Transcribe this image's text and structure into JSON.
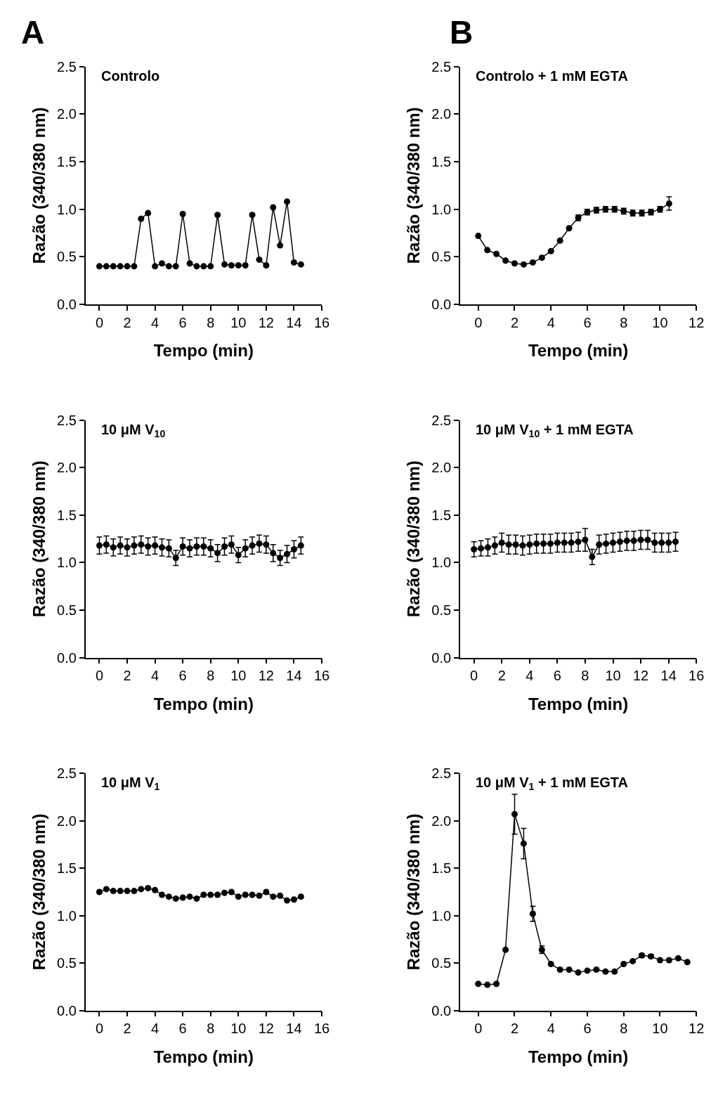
{
  "chart_data": [
    {
      "type": "line",
      "title": "Controlo",
      "xlabel": "Tempo (min)",
      "ylabel": "Razão (340/380 nm)",
      "annotations": [
        "A"
      ],
      "marker": "circle",
      "color": "#000000",
      "x": [
        0,
        0.5,
        1,
        1.5,
        2,
        2.5,
        3,
        3.5,
        4,
        4.5,
        5,
        5.5,
        6,
        6.5,
        7,
        7.5,
        8,
        8.5,
        9,
        9.5,
        10,
        10.5,
        11,
        11.5,
        12,
        12.5,
        13,
        13.5,
        14,
        14.5
      ],
      "values": [
        0.4,
        0.4,
        0.4,
        0.4,
        0.4,
        0.4,
        0.9,
        0.96,
        0.4,
        0.43,
        0.4,
        0.4,
        0.95,
        0.43,
        0.4,
        0.4,
        0.4,
        0.94,
        0.42,
        0.41,
        0.41,
        0.41,
        0.94,
        0.47,
        0.41,
        1.02,
        0.62,
        1.08,
        0.44,
        0.42
      ],
      "xlim": [
        -1,
        16
      ],
      "xticks": [
        0,
        2,
        4,
        6,
        8,
        10,
        12,
        14,
        16
      ],
      "ylim": [
        0,
        2.5
      ],
      "yticks": [
        {
          "value": 0,
          "label": "0.0"
        },
        {
          "value": 0.5,
          "label": "0.5"
        },
        {
          "value": 1,
          "label": "1.0"
        },
        {
          "value": 1.5,
          "label": "1.5"
        },
        {
          "value": 2,
          "label": "2.0"
        },
        {
          "value": 2.5,
          "label": "2.5"
        }
      ]
    },
    {
      "type": "line",
      "title": "Controlo + 1 mM EGTA",
      "xlabel": "Tempo (min)",
      "ylabel": "Razão (340/380 nm)",
      "annotations": [
        "B"
      ],
      "marker": "circle",
      "color": "#000000",
      "x": [
        0,
        0.5,
        1,
        1.5,
        2,
        2.5,
        3,
        3.5,
        4,
        4.5,
        5,
        5.5,
        6,
        6.5,
        7,
        7.5,
        8,
        8.5,
        9,
        9.5,
        10,
        10.5
      ],
      "values": [
        0.72,
        0.57,
        0.53,
        0.46,
        0.43,
        0.42,
        0.44,
        0.49,
        0.56,
        0.67,
        0.8,
        0.91,
        0.97,
        0.99,
        1.0,
        1.0,
        0.98,
        0.96,
        0.96,
        0.97,
        1.0,
        1.06
      ],
      "errors": [
        null,
        null,
        null,
        null,
        null,
        null,
        null,
        null,
        null,
        null,
        null,
        0.03,
        0.03,
        0.03,
        0.03,
        0.03,
        0.03,
        0.03,
        0.03,
        0.03,
        0.03,
        0.07
      ],
      "xlim": [
        -1,
        12
      ],
      "xticks": [
        0,
        2,
        4,
        6,
        8,
        10,
        12
      ],
      "ylim": [
        0,
        2.5
      ],
      "yticks": [
        {
          "value": 0,
          "label": "0.0"
        },
        {
          "value": 0.5,
          "label": "0.5"
        },
        {
          "value": 1,
          "label": "1.0"
        },
        {
          "value": 1.5,
          "label": "1.5"
        },
        {
          "value": 2,
          "label": "2.0"
        },
        {
          "value": 2.5,
          "label": "2.5"
        }
      ]
    },
    {
      "type": "line",
      "title": "10 μM V$_{10}$",
      "xlabel": "Tempo (min)",
      "ylabel": "Razão (340/380 nm)",
      "marker": "circle",
      "color": "#000000",
      "x": [
        0,
        0.5,
        1,
        1.5,
        2,
        2.5,
        3,
        3.5,
        4,
        4.5,
        5,
        5.5,
        6,
        6.5,
        7,
        7.5,
        8,
        8.5,
        9,
        9.5,
        10,
        10.5,
        11,
        11.5,
        12,
        12.5,
        13,
        13.5,
        14,
        14.5
      ],
      "values": [
        1.18,
        1.19,
        1.16,
        1.18,
        1.16,
        1.18,
        1.19,
        1.17,
        1.18,
        1.16,
        1.15,
        1.05,
        1.17,
        1.15,
        1.17,
        1.17,
        1.15,
        1.1,
        1.17,
        1.19,
        1.08,
        1.15,
        1.18,
        1.2,
        1.19,
        1.1,
        1.05,
        1.09,
        1.14,
        1.18
      ],
      "errors": [
        0.09,
        0.09,
        0.09,
        0.09,
        0.09,
        0.09,
        0.09,
        0.09,
        0.09,
        0.09,
        0.09,
        0.08,
        0.09,
        0.09,
        0.09,
        0.09,
        0.09,
        0.09,
        0.09,
        0.09,
        0.08,
        0.09,
        0.09,
        0.09,
        0.09,
        0.09,
        0.08,
        0.09,
        0.09,
        0.09
      ],
      "xlim": [
        -1,
        16
      ],
      "xticks": [
        0,
        2,
        4,
        6,
        8,
        10,
        12,
        14,
        16
      ],
      "ylim": [
        0,
        2.5
      ],
      "yticks": [
        {
          "value": 0,
          "label": "0.0"
        },
        {
          "value": 0.5,
          "label": "0.5"
        },
        {
          "value": 1,
          "label": "1.0"
        },
        {
          "value": 1.5,
          "label": "1.5"
        },
        {
          "value": 2,
          "label": "2.0"
        },
        {
          "value": 2.5,
          "label": "2.5"
        }
      ]
    },
    {
      "type": "line",
      "title": "10 μM V$_{10}$ + 1 mM EGTA",
      "xlabel": "Tempo (min)",
      "ylabel": "Razão (340/380 nm)",
      "marker": "circle",
      "color": "#000000",
      "x": [
        0,
        0.5,
        1,
        1.5,
        2,
        2.5,
        3,
        3.5,
        4,
        4.5,
        5,
        5.5,
        6,
        6.5,
        7,
        7.5,
        8,
        8.5,
        9,
        9.5,
        10,
        10.5,
        11,
        11.5,
        12,
        12.5,
        13,
        13.5,
        14,
        14.5
      ],
      "values": [
        1.14,
        1.15,
        1.16,
        1.18,
        1.21,
        1.19,
        1.19,
        1.18,
        1.19,
        1.2,
        1.2,
        1.2,
        1.21,
        1.21,
        1.21,
        1.22,
        1.24,
        1.06,
        1.19,
        1.2,
        1.21,
        1.22,
        1.23,
        1.23,
        1.24,
        1.24,
        1.21,
        1.21,
        1.21,
        1.22
      ],
      "errors": [
        0.08,
        0.08,
        0.09,
        0.09,
        0.1,
        0.1,
        0.1,
        0.1,
        0.1,
        0.1,
        0.1,
        0.1,
        0.1,
        0.1,
        0.1,
        0.1,
        0.12,
        0.08,
        0.1,
        0.1,
        0.1,
        0.1,
        0.1,
        0.1,
        0.1,
        0.1,
        0.1,
        0.1,
        0.1,
        0.1
      ],
      "xlim": [
        -1,
        16
      ],
      "xticks": [
        0,
        2,
        4,
        6,
        8,
        10,
        12,
        14,
        16
      ],
      "ylim": [
        0,
        2.5
      ],
      "yticks": [
        {
          "value": 0,
          "label": "0.0"
        },
        {
          "value": 0.5,
          "label": "0.5"
        },
        {
          "value": 1,
          "label": "1.0"
        },
        {
          "value": 1.5,
          "label": "1.5"
        },
        {
          "value": 2,
          "label": "2.0"
        },
        {
          "value": 2.5,
          "label": "2.5"
        }
      ]
    },
    {
      "type": "line",
      "title": "10 μM V$_{1}$",
      "xlabel": "Tempo (min)",
      "ylabel": "Razão (340/380 nm)",
      "marker": "circle",
      "color": "#000000",
      "x": [
        0,
        0.5,
        1,
        1.5,
        2,
        2.5,
        3,
        3.5,
        4,
        4.5,
        5,
        5.5,
        6,
        6.5,
        7,
        7.5,
        8,
        8.5,
        9,
        9.5,
        10,
        10.5,
        11,
        11.5,
        12,
        12.5,
        13,
        13.5,
        14,
        14.5
      ],
      "values": [
        1.25,
        1.28,
        1.26,
        1.26,
        1.26,
        1.26,
        1.28,
        1.29,
        1.27,
        1.22,
        1.2,
        1.18,
        1.19,
        1.2,
        1.18,
        1.22,
        1.22,
        1.22,
        1.24,
        1.25,
        1.2,
        1.22,
        1.22,
        1.21,
        1.25,
        1.2,
        1.21,
        1.16,
        1.17,
        1.2
      ],
      "xlim": [
        -1,
        16
      ],
      "xticks": [
        0,
        2,
        4,
        6,
        8,
        10,
        12,
        14,
        16
      ],
      "ylim": [
        0,
        2.5
      ],
      "yticks": [
        {
          "value": 0,
          "label": "0.0"
        },
        {
          "value": 0.5,
          "label": "0.5"
        },
        {
          "value": 1,
          "label": "1.0"
        },
        {
          "value": 1.5,
          "label": "1.5"
        },
        {
          "value": 2,
          "label": "2.0"
        },
        {
          "value": 2.5,
          "label": "2.5"
        }
      ]
    },
    {
      "type": "line",
      "title": "10 μM V$_{1}$ + 1 mM EGTA",
      "xlabel": "Tempo (min)",
      "ylabel": "Razão (340/380 nm)",
      "marker": "circle",
      "color": "#000000",
      "x": [
        0,
        0.5,
        1,
        1.5,
        2,
        2.5,
        3,
        3.5,
        4,
        4.5,
        5,
        5.5,
        6,
        6.5,
        7,
        7.5,
        8,
        8.5,
        9,
        9.5,
        10,
        10.5,
        11,
        11.5
      ],
      "values": [
        0.28,
        0.27,
        0.28,
        0.64,
        2.07,
        1.76,
        1.02,
        0.64,
        0.49,
        0.43,
        0.43,
        0.4,
        0.42,
        0.43,
        0.41,
        0.41,
        0.49,
        0.52,
        0.58,
        0.57,
        0.53,
        0.53,
        0.55,
        0.51
      ],
      "errors": [
        null,
        null,
        null,
        null,
        0.21,
        0.16,
        0.08,
        0.04,
        null,
        null,
        null,
        null,
        null,
        null,
        null,
        null,
        null,
        null,
        0.02,
        0.02,
        null,
        null,
        null,
        null
      ],
      "xlim": [
        -1,
        12
      ],
      "xticks": [
        0,
        2,
        4,
        6,
        8,
        10,
        12
      ],
      "ylim": [
        0,
        2.5
      ],
      "yticks": [
        {
          "value": 0,
          "label": "0.0"
        },
        {
          "value": 0.5,
          "label": "0.5"
        },
        {
          "value": 1,
          "label": "1.0"
        },
        {
          "value": 1.5,
          "label": "1.5"
        },
        {
          "value": 2,
          "label": "2.0"
        },
        {
          "value": 2.5,
          "label": "2.5"
        }
      ]
    }
  ]
}
